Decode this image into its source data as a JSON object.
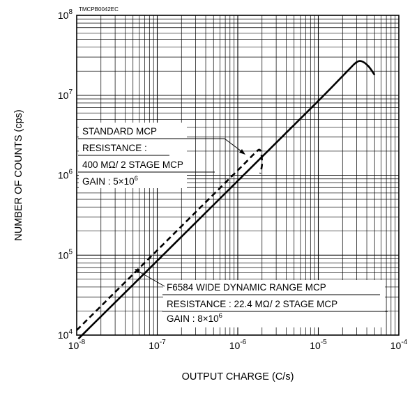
{
  "chart_data": {
    "type": "line",
    "figure_code": "TMCPB0042EC",
    "xlabel": "OUTPUT CHARGE (C/s)",
    "ylabel": "NUMBER OF COUNTS (cps)",
    "x_scale": "log",
    "y_scale": "log",
    "xlim": [
      1e-08,
      0.0001
    ],
    "ylim": [
      10000.0,
      100000000.0
    ],
    "grid": true,
    "x_ticks": [
      {
        "base": "10",
        "exp": "-8"
      },
      {
        "base": "10",
        "exp": "-7"
      },
      {
        "base": "10",
        "exp": "-6"
      },
      {
        "base": "10",
        "exp": "-5"
      },
      {
        "base": "10",
        "exp": "-4"
      }
    ],
    "y_ticks": [
      {
        "base": "10",
        "exp": "4"
      },
      {
        "base": "10",
        "exp": "5"
      },
      {
        "base": "10",
        "exp": "6"
      },
      {
        "base": "10",
        "exp": "7"
      },
      {
        "base": "10",
        "exp": "8"
      }
    ],
    "series": [
      {
        "style": "solid",
        "x": [
          1.05e-08,
          1e-07,
          1e-06,
          1e-05,
          2.4e-05,
          3e-05,
          3.5e-05,
          4.2e-05,
          5e-05
        ],
        "y": [
          9000.0,
          85000.0,
          850000.0,
          8500000.0,
          21000000.0,
          26000000.0,
          26500000.0,
          23000000.0,
          18000000.0
        ]
      },
      {
        "style": "dashed",
        "x": [
          1e-08,
          1e-07,
          1e-06,
          1.6e-06,
          1.9e-06,
          2e-06,
          1.9e-06
        ],
        "y": [
          11500.0,
          115000.0,
          1150000.0,
          1850000.0,
          2050000.0,
          1400000.0,
          1050000.0
        ]
      }
    ],
    "annotations": [
      {
        "id": "standard",
        "lines": [
          {
            "text": "STANDARD MCP"
          },
          {
            "text": "RESISTANCE :"
          },
          {
            "text": "400 MΩ/ 2 STAGE MCP"
          },
          {
            "text": "GAIN : 5×10",
            "sup": "6"
          }
        ]
      },
      {
        "id": "f6584",
        "lines": [
          {
            "text": "F6584 WIDE DYNAMIC RANGE MCP"
          },
          {
            "text": "RESISTANCE : 22.4 MΩ/ 2 STAGE MCP"
          },
          {
            "text": "GAIN : 8×10",
            "sup": "6"
          }
        ]
      }
    ]
  }
}
